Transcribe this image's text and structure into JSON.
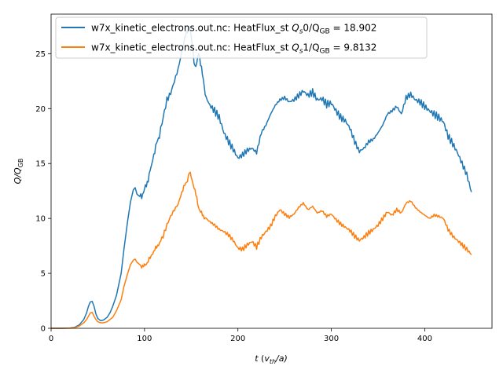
{
  "chart_data": {
    "type": "line",
    "title": "",
    "xlabel": "t (v_th/a)",
    "xlabel_parts": {
      "main": "t",
      "paren_open": " (",
      "v": "v",
      "sub": "th",
      "rest": "/a)"
    },
    "ylabel": "Q/Q_GB",
    "ylabel_parts": {
      "main": "Q/Q",
      "sub": "GB"
    },
    "xlim": [
      0,
      472
    ],
    "ylim": [
      0,
      28.6
    ],
    "xticks": [
      0,
      100,
      200,
      300,
      400
    ],
    "yticks": [
      0,
      5,
      10,
      15,
      20,
      25
    ],
    "grid": false,
    "legend_position": "top-left",
    "colors": [
      "#1f77b4",
      "#ff7f0e"
    ],
    "series": [
      {
        "name": "w7x_kinetic_electrons.out.nc: HeatFlux_st Qs0/QGB = 18.902",
        "legend_parts": {
          "prefix": "w7x_kinetic_electrons.out.nc: HeatFlux_st ",
          "q": "Q",
          "qsub": "s",
          "mid": "0/Q",
          "gb": "GB",
          "suffix": " = 18.902"
        },
        "x": [
          0,
          10,
          20,
          25,
          30,
          35,
          38,
          40,
          42,
          44,
          46,
          48,
          50,
          53,
          56,
          60,
          63,
          66,
          70,
          75,
          78,
          82,
          85,
          88,
          90,
          92,
          95,
          98,
          100,
          103,
          106,
          110,
          113,
          116,
          120,
          124,
          128,
          132,
          136,
          140,
          143,
          146,
          148,
          150,
          152,
          154,
          156,
          158,
          160,
          163,
          166,
          170,
          175,
          180,
          185,
          190,
          195,
          200,
          205,
          210,
          215,
          220,
          225,
          230,
          235,
          240,
          245,
          250,
          255,
          260,
          265,
          270,
          275,
          280,
          285,
          290,
          295,
          300,
          305,
          310,
          315,
          320,
          325,
          330,
          335,
          340,
          345,
          350,
          355,
          360,
          365,
          370,
          375,
          380,
          385,
          390,
          395,
          400,
          405,
          410,
          415,
          420,
          425,
          430,
          435,
          440,
          445,
          450
        ],
        "y": [
          0,
          0,
          0.02,
          0.08,
          0.3,
          0.8,
          1.4,
          2.0,
          2.4,
          2.45,
          2.0,
          1.3,
          0.9,
          0.7,
          0.75,
          1.0,
          1.4,
          2.0,
          3.0,
          5.0,
          7.2,
          9.8,
          11.5,
          12.6,
          12.8,
          12.2,
          12.0,
          12.2,
          12.6,
          13.3,
          14.3,
          15.8,
          16.8,
          17.6,
          19.2,
          20.8,
          21.4,
          22.5,
          23.6,
          25.2,
          26.3,
          27.2,
          27.6,
          26.4,
          25.2,
          23.8,
          24.0,
          25.2,
          24.2,
          22.5,
          21.0,
          20.3,
          19.8,
          19.2,
          17.8,
          17.0,
          16.3,
          15.5,
          15.8,
          16.2,
          16.4,
          16.0,
          17.8,
          18.5,
          19.5,
          20.3,
          20.8,
          21.0,
          20.6,
          20.8,
          21.2,
          21.6,
          21.2,
          21.5,
          20.8,
          20.9,
          20.4,
          20.5,
          19.8,
          19.2,
          18.9,
          18.2,
          17.0,
          16.1,
          16.4,
          17.0,
          17.2,
          17.8,
          18.5,
          19.5,
          19.8,
          20.2,
          19.5,
          21.0,
          21.3,
          20.8,
          20.6,
          20.2,
          19.8,
          19.5,
          19.2,
          18.8,
          17.5,
          16.8,
          16.0,
          15.0,
          14.0,
          12.4
        ]
      },
      {
        "name": "w7x_kinetic_electrons.out.nc: HeatFlux_st Qs1/QGB = 9.8132",
        "legend_parts": {
          "prefix": "w7x_kinetic_electrons.out.nc: HeatFlux_st ",
          "q": "Q",
          "qsub": "s",
          "mid": "1/Q",
          "gb": "GB",
          "suffix": " = 9.8132"
        },
        "x": [
          0,
          10,
          20,
          25,
          30,
          35,
          38,
          40,
          42,
          44,
          46,
          48,
          50,
          53,
          56,
          60,
          63,
          66,
          70,
          75,
          78,
          82,
          85,
          88,
          90,
          92,
          95,
          98,
          100,
          103,
          106,
          110,
          113,
          116,
          120,
          124,
          128,
          132,
          136,
          140,
          143,
          146,
          148,
          150,
          152,
          154,
          156,
          158,
          160,
          163,
          166,
          170,
          175,
          180,
          185,
          190,
          195,
          200,
          205,
          210,
          215,
          220,
          225,
          230,
          235,
          240,
          245,
          250,
          255,
          260,
          265,
          270,
          275,
          280,
          285,
          290,
          295,
          300,
          305,
          310,
          315,
          320,
          325,
          330,
          335,
          340,
          345,
          350,
          355,
          360,
          365,
          370,
          375,
          380,
          385,
          390,
          395,
          400,
          405,
          410,
          415,
          420,
          425,
          430,
          435,
          440,
          445,
          450
        ],
        "y": [
          0,
          0,
          0.01,
          0.05,
          0.2,
          0.5,
          0.8,
          1.1,
          1.4,
          1.45,
          1.1,
          0.8,
          0.6,
          0.5,
          0.5,
          0.6,
          0.8,
          1.0,
          1.6,
          2.6,
          3.8,
          5.0,
          5.8,
          6.2,
          6.3,
          6.0,
          5.8,
          5.6,
          5.7,
          6.0,
          6.4,
          7.0,
          7.4,
          7.8,
          8.4,
          9.4,
          10.2,
          10.8,
          11.3,
          12.4,
          13.0,
          13.5,
          14.2,
          13.8,
          13.2,
          12.5,
          11.8,
          11.0,
          10.6,
          10.2,
          10.0,
          9.7,
          9.4,
          9.0,
          8.8,
          8.5,
          8.0,
          7.3,
          7.2,
          7.6,
          7.9,
          7.4,
          8.3,
          8.8,
          9.3,
          10.2,
          10.8,
          10.4,
          10.1,
          10.4,
          11.0,
          11.4,
          10.8,
          11.1,
          10.5,
          10.7,
          10.2,
          10.4,
          9.9,
          9.5,
          9.2,
          8.9,
          8.4,
          8.0,
          8.3,
          8.7,
          9.0,
          9.4,
          10.0,
          10.6,
          10.3,
          10.8,
          10.5,
          11.4,
          11.6,
          11.0,
          10.6,
          10.3,
          10.0,
          10.3,
          10.2,
          10.0,
          9.0,
          8.4,
          8.0,
          7.6,
          7.2,
          6.7
        ]
      }
    ]
  }
}
